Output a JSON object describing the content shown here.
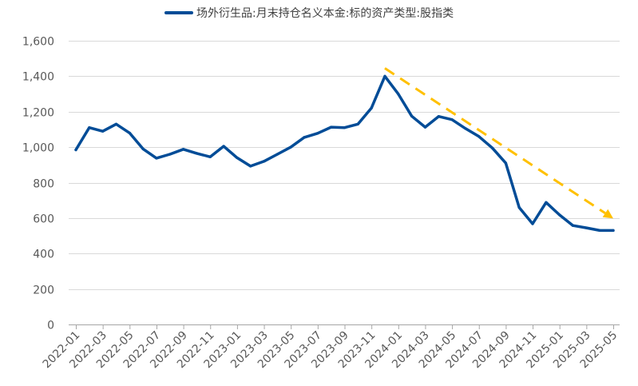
{
  "chart_data": {
    "type": "line",
    "legend_position": "top-center",
    "grid": true,
    "ylim": [
      0,
      1600
    ],
    "yticks": [
      0,
      200,
      400,
      600,
      800,
      1000,
      1200,
      1400,
      1600
    ],
    "ytick_labels": [
      "0",
      "200",
      "400",
      "600",
      "800",
      "1,000",
      "1,200",
      "1,400",
      "1,600"
    ],
    "xtick_labels": [
      "2022-01",
      "2022-03",
      "2022-05",
      "2022-07",
      "2022-09",
      "2022-11",
      "2023-01",
      "2023-03",
      "2023-05",
      "2023-07",
      "2023-09",
      "2023-11",
      "2024-01",
      "2024-03",
      "2024-05",
      "2024-07",
      "2024-09",
      "2024-11",
      "2025-01",
      "2025-03",
      "2025-05"
    ],
    "x": [
      "2022-01",
      "2022-02",
      "2022-03",
      "2022-04",
      "2022-05",
      "2022-06",
      "2022-07",
      "2022-08",
      "2022-09",
      "2022-10",
      "2022-11",
      "2022-12",
      "2023-01",
      "2023-02",
      "2023-03",
      "2023-04",
      "2023-05",
      "2023-06",
      "2023-07",
      "2023-08",
      "2023-09",
      "2023-10",
      "2023-11",
      "2023-12",
      "2024-01",
      "2024-02",
      "2024-03",
      "2024-04",
      "2024-05",
      "2024-06",
      "2024-07",
      "2024-08",
      "2024-09",
      "2024-10",
      "2024-11",
      "2024-12",
      "2025-01",
      "2025-02",
      "2025-03",
      "2025-04",
      "2025-05"
    ],
    "series": [
      {
        "name": "场外衍生品:月末持仓名义本金:标的资产类型:股指类",
        "color": "#004C97",
        "values": [
          985,
          1110,
          1090,
          1130,
          1080,
          990,
          938,
          960,
          988,
          965,
          945,
          1005,
          940,
          893,
          920,
          960,
          1000,
          1055,
          1078,
          1113,
          1110,
          1130,
          1220,
          1400,
          1300,
          1175,
          1113,
          1173,
          1155,
          1105,
          1060,
          995,
          910,
          660,
          568,
          688,
          618,
          558,
          545,
          530,
          530
        ]
      }
    ],
    "annotations": [
      {
        "type": "trend-arrow",
        "style": "dashed",
        "color": "#FFC000",
        "from": {
          "x": "2023-12",
          "y": 1445
        },
        "to": {
          "x": "2025-05",
          "y": 598
        }
      }
    ]
  }
}
